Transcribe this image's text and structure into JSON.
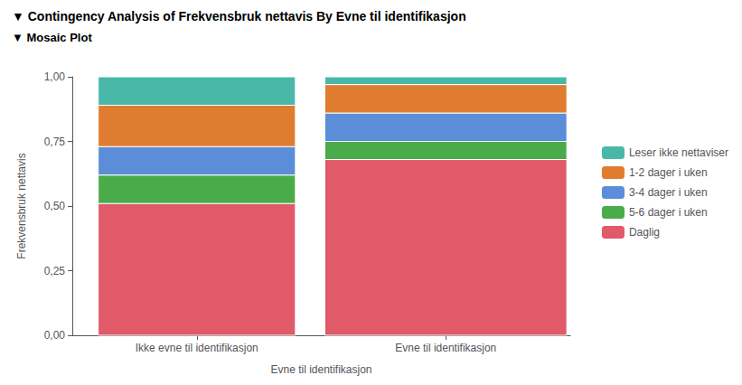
{
  "chart_data": {
    "type": "bar",
    "stacked": true,
    "title": "▼ Contingency Analysis of Frekvensbruk nettavis By Evne til identifikasjon",
    "subtitle": "▼ Mosaic Plot",
    "xlabel": "Evne til identifikasjon",
    "ylabel": "Frekvensbruk nettavis",
    "categories": [
      "Ikke evne til identifikasjon",
      "Evne til identifikasjon"
    ],
    "widths": [
      0.44,
      0.54
    ],
    "series": [
      {
        "name": "Daglig",
        "color": "#e05a6a",
        "values": [
          0.51,
          0.68
        ]
      },
      {
        "name": "5-6 dager i uken",
        "color": "#4aab4a",
        "values": [
          0.11,
          0.07
        ]
      },
      {
        "name": "3-4 dager i uken",
        "color": "#5b8dd9",
        "values": [
          0.11,
          0.11
        ]
      },
      {
        "name": "1-2 dager i uken",
        "color": "#e07c30",
        "values": [
          0.16,
          0.11
        ]
      },
      {
        "name": "Leser ikke nettaviser",
        "color": "#4ab8a8",
        "values": [
          0.11,
          0.03
        ]
      }
    ],
    "ylim": [
      0,
      1.0
    ],
    "yticks": [
      {
        "value": 0.0,
        "label": "0,00"
      },
      {
        "value": 0.25,
        "label": "0,25"
      },
      {
        "value": 0.5,
        "label": "0,50"
      },
      {
        "value": 0.75,
        "label": "0,75"
      },
      {
        "value": 1.0,
        "label": "1,00"
      }
    ],
    "legend": "right",
    "grid": false
  }
}
